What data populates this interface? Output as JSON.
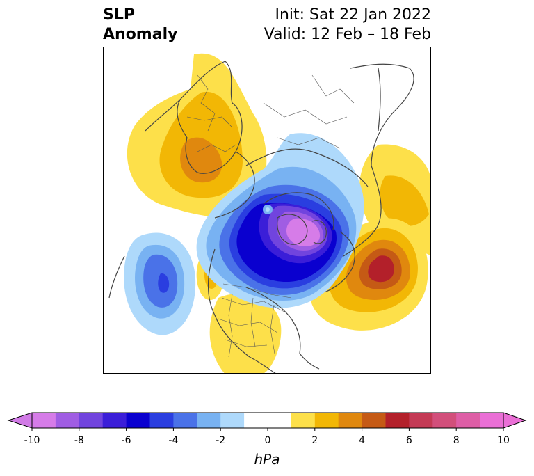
{
  "title": {
    "left_line1": "SLP",
    "left_line2": "Anomaly",
    "right_line1": "Init: Sat 22 Jan 2022",
    "right_line2": "Valid: 12 Feb – 18 Feb"
  },
  "colorbar": {
    "unit": "hPa",
    "extend": "both",
    "min": -10,
    "max": 10,
    "step": 1,
    "ticks": [
      "-10",
      "-8",
      "-6",
      "-4",
      "-2",
      "0",
      "2",
      "4",
      "6",
      "8",
      "10"
    ],
    "colors": [
      "#d67ce8",
      "#a05de3",
      "#7144de",
      "#3b1ed8",
      "#0a00cf",
      "#2a3ee0",
      "#4a72e8",
      "#78b2f2",
      "#aed9fb",
      "#ffffff",
      "#ffffff",
      "#fde04a",
      "#f2b705",
      "#e0880e",
      "#c55a15",
      "#b3202a",
      "#c43a55",
      "#d24f7b",
      "#de5ea6",
      "#ea6fd6"
    ],
    "extend_low_color": "#d17ae6",
    "extend_high_color": "#ea6fd6"
  },
  "map": {
    "projection": "north-polar-stereographic",
    "features": [
      "coastlines",
      "country-borders",
      "state-borders"
    ],
    "anomaly_centers": [
      {
        "region": "Arctic / Canadian Archipelago",
        "sign": "negative",
        "peak_hPa": -10
      },
      {
        "region": "North Atlantic",
        "sign": "positive",
        "peak_hPa": 6
      },
      {
        "region": "North Pacific",
        "sign": "negative",
        "peak_hPa": -5
      },
      {
        "region": "Western Europe",
        "sign": "positive",
        "peak_hPa": 3
      },
      {
        "region": "Northeast Asia",
        "sign": "positive",
        "peak_hPa": 3
      }
    ]
  }
}
